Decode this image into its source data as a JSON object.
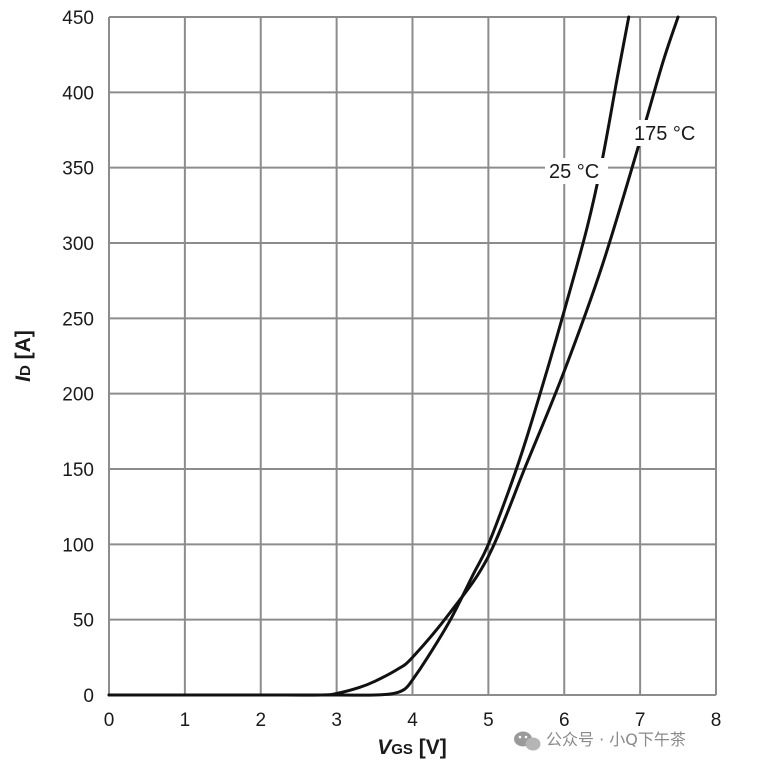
{
  "chart_data": {
    "type": "line",
    "xlabel_main": "V",
    "xlabel_sub": "GS",
    "xlabel_unit": " [V]",
    "ylabel_main": "I",
    "ylabel_sub": "D",
    "ylabel_unit": " [A]",
    "xlim": [
      0,
      8
    ],
    "ylim": [
      0,
      450
    ],
    "x_ticks": [
      0,
      1,
      2,
      3,
      4,
      5,
      6,
      7,
      8
    ],
    "y_ticks": [
      0,
      50,
      100,
      150,
      200,
      250,
      300,
      350,
      400,
      450
    ],
    "grid": true,
    "series": [
      {
        "name": "25 °C",
        "x": [
          0,
          1,
          2,
          3,
          3.5,
          3.75,
          3.9,
          4.0,
          4.2,
          4.5,
          4.8,
          5.0,
          5.3,
          5.5,
          5.8,
          6.0,
          6.3,
          6.5,
          6.7,
          6.85
        ],
        "y": [
          0,
          0,
          0,
          0,
          0,
          1,
          4,
          10,
          25,
          50,
          80,
          100,
          140,
          170,
          220,
          255,
          310,
          355,
          410,
          450
        ]
      },
      {
        "name": "175 °C",
        "x": [
          0,
          1,
          2,
          2.8,
          3.0,
          3.3,
          3.5,
          3.8,
          4.0,
          4.5,
          5.0,
          5.5,
          6.0,
          6.5,
          7.0,
          7.3,
          7.5
        ],
        "y": [
          0,
          0,
          0,
          0,
          1,
          5,
          9,
          17,
          25,
          55,
          92,
          153,
          215,
          285,
          368,
          420,
          450
        ]
      }
    ]
  },
  "watermark": {
    "icon": "wechat-icon",
    "text": "公众号 · 小Q下午茶"
  }
}
